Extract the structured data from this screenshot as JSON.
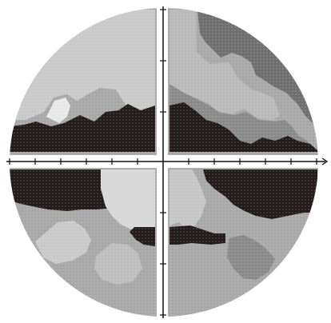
{
  "figure": {
    "kind": "grayscale-visual-field-plot",
    "colors": {
      "background": "#ffffff",
      "axis": "#111111",
      "tone_lightest": "#e8e8e8",
      "tone_light": "#c9c9c9",
      "tone_mid": "#a8a8a8",
      "tone_mid_dark": "#8a8a8a",
      "tone_dark": "#6f6f6f",
      "tone_black": "#231a1a"
    },
    "texture": "dotted-grid",
    "horizontal_ticks_per_side": 6,
    "vertical_ticks_per_side": 5
  }
}
